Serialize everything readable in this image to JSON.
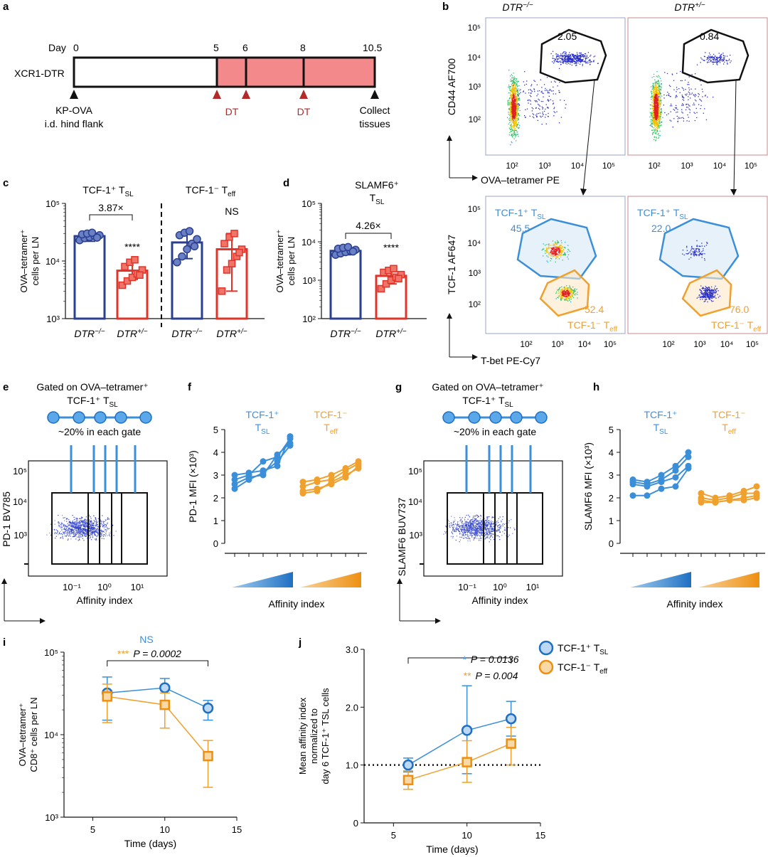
{
  "colors": {
    "navy": "#2a3f8f",
    "navy_fill": "#6b7fc4",
    "red": "#e0342a",
    "red_fill": "#f07468",
    "blue": "#3b8fd9",
    "blue_fill": "#bcd8f2",
    "orange": "#f0a02c",
    "orange_fill": "#fbd9a6",
    "timeline_fill": "#f4898b",
    "arrow_red": "#b22a2a",
    "gray_box": "#9aa3c8",
    "gray_box_red": "#c98a8a"
  },
  "panels": {
    "a": {
      "letter": "a",
      "day_label": "Day",
      "mouse": "XCR1-DTR",
      "days": [
        "0",
        "5",
        "6",
        "8",
        "10.5"
      ],
      "events": [
        "KP-OVA",
        "i.d. hind flank",
        "DT",
        "DT",
        "Collect",
        "tissues"
      ]
    },
    "b": {
      "letter": "b",
      "col1": "DTR",
      "col1_sup": "−/−",
      "col2": "DTR",
      "col2_sup": "+/−",
      "top_ylabel": "CD44 AF700",
      "top_xlabel": "OVA–tetramer PE",
      "top_gate_values": [
        "2.05",
        "0.84"
      ],
      "top_yticks": [
        "10⁵",
        "10⁴",
        "10³",
        "10²"
      ],
      "top_xticks": [
        "10²",
        "10³",
        "10⁴",
        "10⁵"
      ],
      "bot_ylabel": "TCF-1 AF647",
      "bot_xlabel": "T-bet PE-Cy7",
      "bot_yticks": [
        "10⁵",
        "10⁴",
        "10³",
        "10²"
      ],
      "bot_xticks": [
        "10²",
        "10³",
        "10⁴",
        "10⁵"
      ],
      "tsl_label": "TCF-1⁺ T",
      "tsl_sub": "SL",
      "teff_label": "TCF-1⁻ T",
      "teff_sub": "eff",
      "tsl_values": [
        "45.5",
        "22.0"
      ],
      "teff_values": [
        "52.4",
        "76.0"
      ]
    },
    "i": {
      "letter": "i",
      "ns": "NS",
      "stars": "***",
      "p": "P = 0.0002"
    },
    "j": {
      "letter": "j",
      "stars1": "*",
      "p1": "P = 0.0136",
      "stars2": "**",
      "p2": "P = 0.004",
      "legend1": "TCF-1⁺ T",
      "legend1_sub": "SL",
      "legend2": "TCF-1⁻ T",
      "legend2_sub": "eff"
    }
  },
  "chart_data": [
    {
      "id": "c",
      "type": "bar",
      "yscale": "log",
      "ylim": [
        1000,
        100000
      ],
      "yticks": [
        "10⁵",
        "10⁴",
        "10³"
      ],
      "ylabel": "OVA–tetramer⁺ cells per LN",
      "groups": [
        {
          "title": "TCF-1⁺ T",
          "title_sub": "SL",
          "fold": "3.87×",
          "sig": "****"
        },
        {
          "title": "TCF-1⁻ T",
          "title_sub": "eff",
          "sig": "NS"
        }
      ],
      "categories": [
        "DTR−/−",
        "DTR+/−",
        "DTR−/−",
        "DTR+/−"
      ],
      "cat_names": [
        "DTR",
        "DTR",
        "DTR",
        "DTR"
      ],
      "cat_sups": [
        "−/−",
        "+/−",
        "−/−",
        "+/−"
      ],
      "means": [
        27000,
        6800,
        21000,
        16000
      ],
      "errors": [
        [
          22000,
          32000
        ],
        [
          4800,
          10500
        ],
        [
          11000,
          31000
        ],
        [
          3000,
          30000
        ]
      ],
      "points": [
        [
          23000,
          25000,
          26000,
          27000,
          28000,
          29000,
          30000,
          31000,
          25500
        ],
        [
          3800,
          4500,
          5200,
          6000,
          7000,
          8000,
          9500,
          10500,
          5700
        ],
        [
          9500,
          12000,
          16000,
          20000,
          24000,
          28000,
          31000,
          33000,
          18000
        ],
        [
          3000,
          7000,
          9000,
          12000,
          16000,
          20000,
          26000,
          30000,
          14000
        ]
      ]
    },
    {
      "id": "d",
      "type": "bar",
      "yscale": "log",
      "ylim": [
        100,
        100000
      ],
      "yticks": [
        "10⁵",
        "10⁴",
        "10³",
        "10²"
      ],
      "title": "SLAMF6⁺",
      "title_t": "T",
      "title_sub": "SL",
      "ylabel": "OVA–tetramer⁺ cells per LN",
      "fold": "4.26×",
      "sig": "****",
      "categories": [
        "DTR−/−",
        "DTR+/−"
      ],
      "cat_names": [
        "DTR",
        "DTR"
      ],
      "cat_sups": [
        "−/−",
        "+/−"
      ],
      "means": [
        5800,
        1300
      ],
      "errors": [
        [
          4600,
          7200
        ],
        [
          800,
          1900
        ]
      ],
      "points": [
        [
          4600,
          5000,
          5400,
          5800,
          6200,
          6600,
          7000,
          7300,
          5600
        ],
        [
          600,
          800,
          1000,
          1200,
          1400,
          1600,
          1800,
          2000,
          1100
        ]
      ]
    },
    {
      "id": "e",
      "type": "scatter",
      "title": "Gated on OVA–tetramer⁺",
      "title2": "TCF-1⁺ T",
      "title2_sub": "SL",
      "note": "~20% in each gate",
      "ylabel": "PD-1 BV785",
      "xlabel": "Affinity index",
      "yticks": [
        "10⁵",
        "10⁴",
        "10³"
      ],
      "xticks": [
        "10⁻¹",
        "10⁰",
        "10¹"
      ]
    },
    {
      "id": "f",
      "type": "line",
      "ylabel": "PD-1 MFI (×10³)",
      "xlabel": "Affinity index",
      "ylim": [
        0,
        5
      ],
      "yticks": [
        "5",
        "4",
        "3",
        "2",
        "1",
        "0"
      ],
      "group_labels": [
        {
          "line1": "TCF-1⁺",
          "line2": "T",
          "sub": "SL"
        },
        {
          "line1": "TCF-1⁻",
          "line2": "T",
          "sub": "eff"
        }
      ],
      "series": [
        {
          "name": "TCF-1+ TSL replicate 1",
          "group": 0,
          "values": [
            2.4,
            2.8,
            3.1,
            3.6,
            4.3
          ]
        },
        {
          "name": "TCF-1+ TSL replicate 2",
          "group": 0,
          "values": [
            2.6,
            2.9,
            3.0,
            3.9,
            4.4
          ]
        },
        {
          "name": "TCF-1+ TSL replicate 3",
          "group": 0,
          "values": [
            2.8,
            3.0,
            3.6,
            3.8,
            4.6
          ]
        },
        {
          "name": "TCF-1+ TSL replicate 4",
          "group": 0,
          "values": [
            3.0,
            3.1,
            3.2,
            3.4,
            4.7
          ]
        },
        {
          "name": "TCF-1- Teff replicate 1",
          "group": 1,
          "values": [
            2.2,
            2.3,
            2.7,
            3.0,
            3.3
          ]
        },
        {
          "name": "TCF-1- Teff replicate 2",
          "group": 1,
          "values": [
            2.3,
            2.4,
            2.6,
            2.9,
            3.4
          ]
        },
        {
          "name": "TCF-1- Teff replicate 3",
          "group": 1,
          "values": [
            2.5,
            2.7,
            2.8,
            3.2,
            3.5
          ]
        },
        {
          "name": "TCF-1- Teff replicate 4",
          "group": 1,
          "values": [
            2.7,
            2.8,
            3.0,
            3.3,
            3.6
          ]
        }
      ]
    },
    {
      "id": "g",
      "type": "scatter",
      "title": "Gated on OVA–tetramer⁺",
      "title2": "TCF-1⁺ T",
      "title2_sub": "SL",
      "note": "~20% in each gate",
      "ylabel": "SLAMF6 BUV737",
      "xlabel": "Affinity index",
      "yticks": [
        "10⁵",
        "10⁴",
        "10³"
      ],
      "xticks": [
        "10⁻¹",
        "10⁰",
        "10¹"
      ]
    },
    {
      "id": "h",
      "type": "line",
      "ylabel": "SLAMF6 MFI (×10³)",
      "xlabel": "Affinity index",
      "ylim": [
        0,
        5
      ],
      "yticks": [
        "5",
        "4",
        "3",
        "2",
        "1",
        "0"
      ],
      "group_labels": [
        {
          "line1": "TCF-1⁺",
          "line2": "T",
          "sub": "SL"
        },
        {
          "line1": "TCF-1⁻",
          "line2": "T",
          "sub": "eff"
        }
      ],
      "series": [
        {
          "name": "TCF-1+ TSL replicate 1",
          "group": 0,
          "values": [
            2.1,
            2.1,
            2.4,
            2.5,
            3.3
          ]
        },
        {
          "name": "TCF-1+ TSL replicate 2",
          "group": 0,
          "values": [
            2.6,
            2.5,
            2.7,
            2.9,
            3.4
          ]
        },
        {
          "name": "TCF-1+ TSL replicate 3",
          "group": 0,
          "values": [
            2.7,
            2.6,
            2.8,
            3.2,
            3.8
          ]
        },
        {
          "name": "TCF-1+ TSL replicate 4",
          "group": 0,
          "values": [
            2.8,
            2.7,
            3.0,
            3.4,
            4.0
          ]
        },
        {
          "name": "TCF-1- Teff replicate 1",
          "group": 1,
          "values": [
            1.8,
            1.8,
            1.9,
            1.9,
            2.0
          ]
        },
        {
          "name": "TCF-1- Teff replicate 2",
          "group": 1,
          "values": [
            1.9,
            1.8,
            1.9,
            2.0,
            2.1
          ]
        },
        {
          "name": "TCF-1- Teff replicate 3",
          "group": 1,
          "values": [
            2.0,
            1.9,
            2.0,
            2.2,
            2.2
          ]
        },
        {
          "name": "TCF-1- Teff replicate 4",
          "group": 1,
          "values": [
            2.2,
            2.0,
            2.1,
            2.3,
            2.5
          ]
        }
      ]
    },
    {
      "id": "i",
      "type": "line",
      "yscale": "log",
      "ylim": [
        1000,
        100000
      ],
      "xlim": [
        3,
        15
      ],
      "xticks": [
        5,
        10,
        15
      ],
      "yticks": [
        "10⁵",
        "10⁴",
        "10³"
      ],
      "xlabel": "Time (days)",
      "ylabel": "OVA–tetramer⁺",
      "ylabel2": "CD8⁺ cells per LN",
      "series": [
        {
          "name": "TCF-1+ TSL",
          "x": [
            6,
            10,
            13
          ],
          "y": [
            32000,
            37000,
            21000
          ],
          "err_low": [
            15000,
            24000,
            15000
          ],
          "err_high": [
            50000,
            48000,
            26000
          ]
        },
        {
          "name": "TCF-1- Teff",
          "x": [
            6,
            10,
            13
          ],
          "y": [
            29000,
            23000,
            5500
          ],
          "err_low": [
            14000,
            12000,
            2300
          ],
          "err_high": [
            41000,
            32000,
            8500
          ]
        }
      ]
    },
    {
      "id": "j",
      "type": "line",
      "ylim": [
        0,
        3
      ],
      "xlim": [
        3,
        15
      ],
      "xticks": [
        5,
        10,
        15
      ],
      "yticks": [
        "3.0",
        "2.0",
        "1.0",
        "0"
      ],
      "xlabel": "Time (days)",
      "ylabel_lines": [
        "Mean affinity index",
        "normalized to",
        "day 6 TCF-1⁺ TSL cells"
      ],
      "ref_line": 1.0,
      "series": [
        {
          "name": "TCF-1+ TSL",
          "x": [
            6,
            10,
            13
          ],
          "y": [
            1.0,
            1.6,
            1.8
          ],
          "err_low": [
            0.88,
            0.85,
            1.5
          ],
          "err_high": [
            1.12,
            2.37,
            2.1
          ]
        },
        {
          "name": "TCF-1- Teff",
          "x": [
            6,
            10,
            13
          ],
          "y": [
            0.74,
            1.05,
            1.37
          ],
          "err_low": [
            0.58,
            0.7,
            1.0
          ],
          "err_high": [
            0.9,
            1.42,
            1.65
          ]
        }
      ]
    }
  ]
}
